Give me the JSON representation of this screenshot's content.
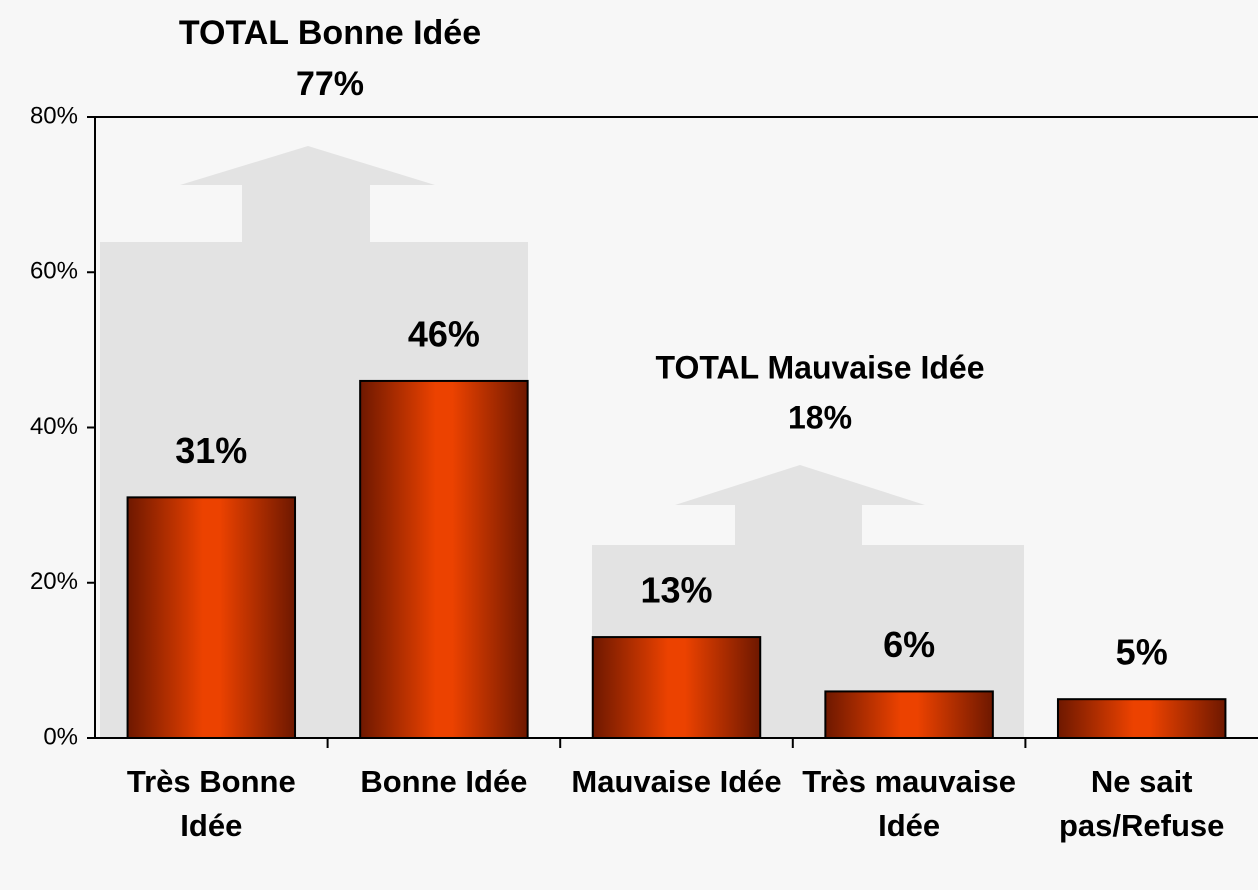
{
  "chart_data": {
    "type": "bar",
    "categories": [
      "Très Bonne Idée",
      "Bonne Idée",
      "Mauvaise Idée",
      "Très mauvaise Idée",
      "Ne sait pas/Refuse"
    ],
    "values": [
      31,
      46,
      13,
      6,
      5
    ],
    "value_labels": [
      "31%",
      "46%",
      "13%",
      "6%",
      "5%"
    ],
    "color": "#e84000",
    "ylim": [
      0,
      80
    ],
    "yticks": [
      {
        "value": 0,
        "label": "0%"
      },
      {
        "value": 20,
        "label": "20%"
      },
      {
        "value": 40,
        "label": "40%"
      },
      {
        "value": 60,
        "label": "60%"
      },
      {
        "value": 80,
        "label": "80%"
      }
    ],
    "annotations": [
      {
        "text": "TOTAL Bonne Idée",
        "label": "77%"
      },
      {
        "text": "TOTAL Mauvaise Idée",
        "label": "18%"
      }
    ]
  }
}
